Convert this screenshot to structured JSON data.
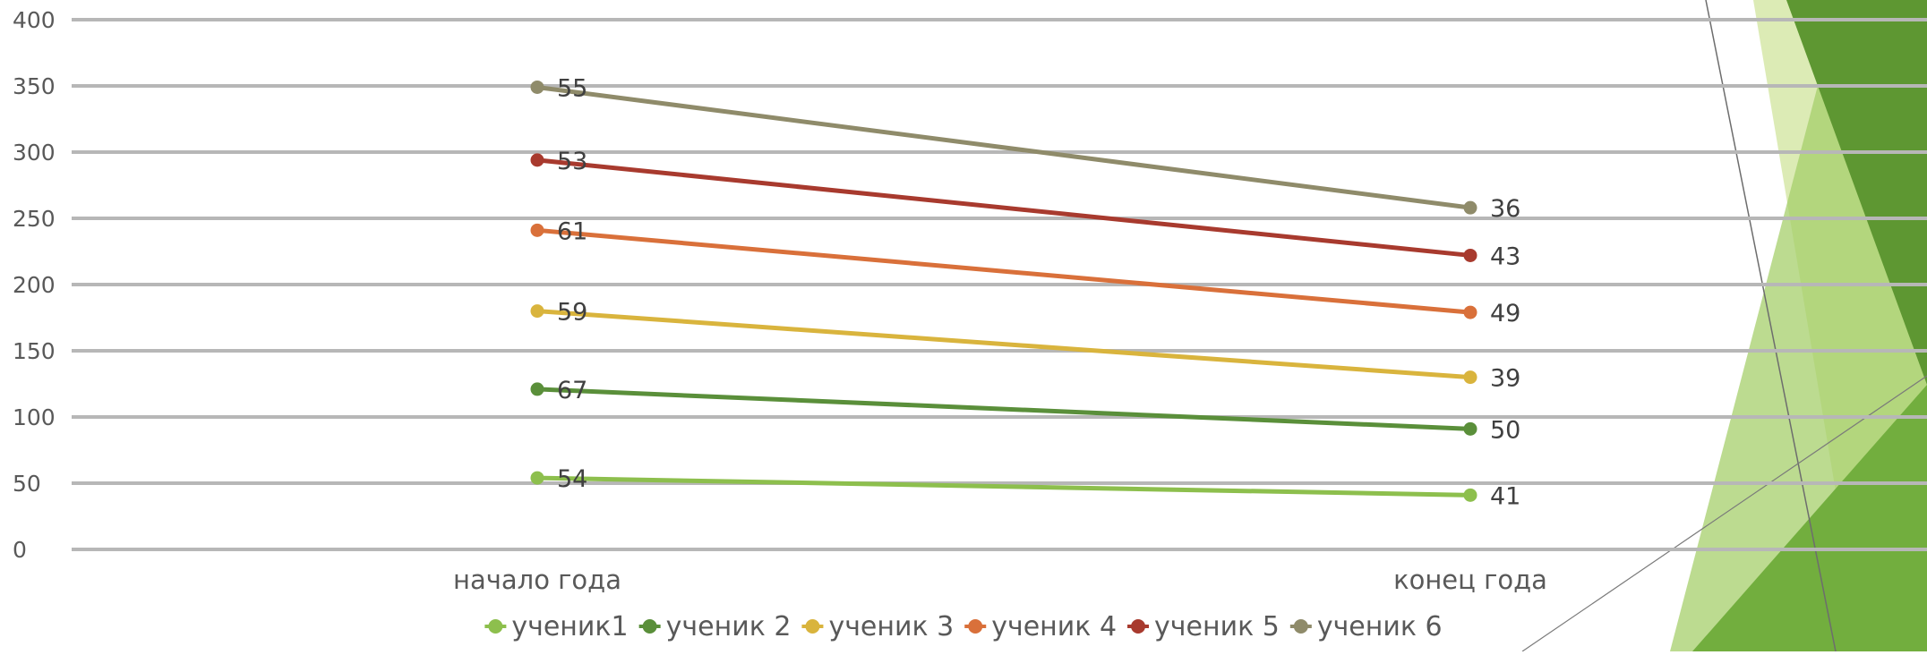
{
  "chart_data": {
    "type": "line",
    "stacked": true,
    "categories": [
      "начало года",
      "конец года"
    ],
    "ylim": [
      0,
      400
    ],
    "yticks": [
      0,
      50,
      100,
      150,
      200,
      250,
      300,
      350,
      400
    ],
    "grid": true,
    "legend_position": "bottom",
    "series": [
      {
        "name": "ученик1",
        "values": [
          54,
          41
        ],
        "color": "#8DBF4D"
      },
      {
        "name": "ученик 2",
        "values": [
          67,
          50
        ],
        "color": "#5A8F3A"
      },
      {
        "name": "ученик 3",
        "values": [
          59,
          39
        ],
        "color": "#D9B43D"
      },
      {
        "name": "ученик 4",
        "values": [
          61,
          49
        ],
        "color": "#D9703A"
      },
      {
        "name": "ученик 5",
        "values": [
          53,
          43
        ],
        "color": "#A83A2E"
      },
      {
        "name": "ученик 6",
        "values": [
          55,
          36
        ],
        "color": "#8F8B6A"
      }
    ]
  },
  "decoration": {
    "colors": [
      "#5E9732",
      "#72AE3E",
      "#A5CF6B",
      "#D6E8A8"
    ]
  }
}
